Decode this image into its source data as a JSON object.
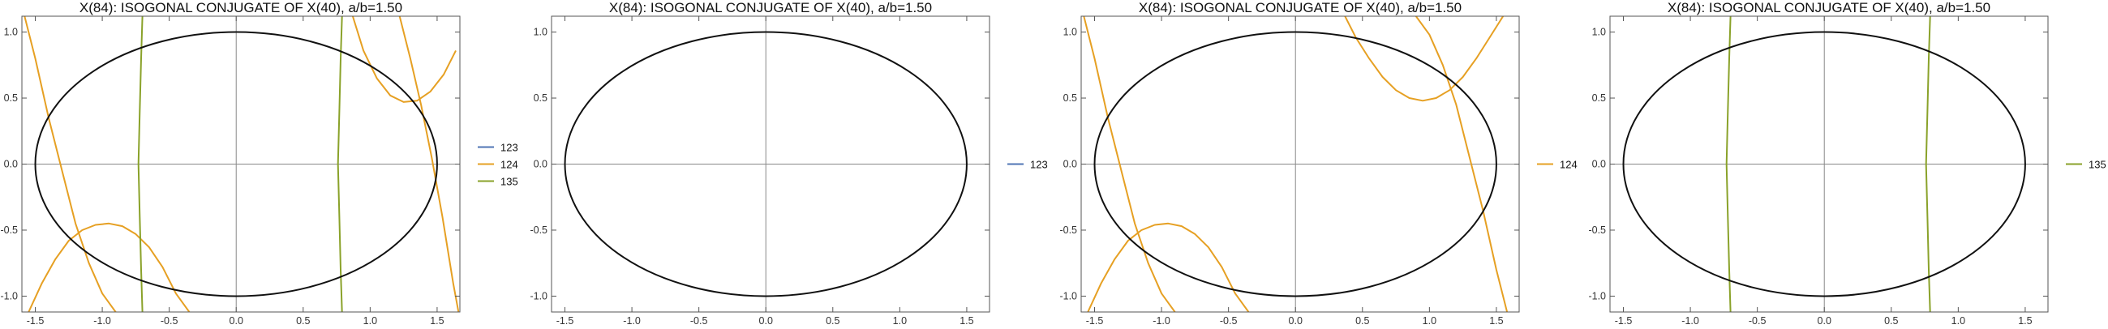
{
  "colors": {
    "123": "#4f74b4",
    "124": "#e6a023",
    "135": "#8aa22a",
    "ellipse": "#111111",
    "axes": "#888888",
    "frame": "#555555"
  },
  "chart_data": [
    {
      "type": "line",
      "title": "X(84): ISOGONAL CONJUGATE OF X(40), a/b=1.50",
      "xlim": [
        -1.6,
        1.67
      ],
      "ylim": [
        -1.12,
        1.12
      ],
      "xticks": [
        "-1.5",
        "-1.0",
        "-0.5",
        "0.0",
        "0.5",
        "1.0",
        "1.5"
      ],
      "yticks": [
        "-1.0",
        "-0.5",
        "0.0",
        "0.5",
        "1.0"
      ],
      "ellipse": {
        "a": 1.5,
        "b": 1.0
      },
      "legend": [
        "123",
        "124",
        "135"
      ],
      "series": [
        {
          "name": "124",
          "curves": [
            {
              "x": [
                0.87,
                0.95,
                1.05,
                1.15,
                1.25,
                1.35,
                1.45,
                1.55,
                1.64
              ],
              "y": [
                1.12,
                0.86,
                0.65,
                0.52,
                0.47,
                0.48,
                0.55,
                0.68,
                0.86
              ]
            },
            {
              "x": [
                1.22,
                1.3,
                1.38,
                1.46,
                1.54,
                1.62,
                1.66
              ],
              "y": [
                1.12,
                0.8,
                0.45,
                0.05,
                -0.4,
                -0.9,
                -1.12
              ]
            },
            {
              "x": [
                -1.55,
                -1.45,
                -1.35,
                -1.25,
                -1.15,
                -1.05,
                -0.95,
                -0.85,
                -0.75,
                -0.65,
                -0.55,
                -0.45,
                -0.35
              ],
              "y": [
                -1.12,
                -0.9,
                -0.72,
                -0.58,
                -0.5,
                -0.46,
                -0.45,
                -0.47,
                -0.53,
                -0.63,
                -0.78,
                -0.98,
                -1.12
              ]
            },
            {
              "x": [
                -1.58,
                -1.5,
                -1.4,
                -1.3,
                -1.2,
                -1.1,
                -1.0,
                -0.9
              ],
              "y": [
                1.12,
                0.8,
                0.35,
                -0.05,
                -0.45,
                -0.75,
                -0.98,
                -1.12
              ]
            }
          ]
        },
        {
          "name": "135",
          "curves": [
            {
              "x": [
                -0.7,
                -0.71,
                -0.72,
                -0.73,
                -0.72,
                -0.71,
                -0.7
              ],
              "y": [
                -1.12,
                -0.8,
                -0.4,
                0.0,
                0.4,
                0.8,
                1.12
              ]
            },
            {
              "x": [
                0.79,
                0.78,
                0.77,
                0.76,
                0.77,
                0.78,
                0.79
              ],
              "y": [
                -1.12,
                -0.8,
                -0.4,
                0.0,
                0.4,
                0.8,
                1.12
              ]
            }
          ]
        }
      ]
    },
    {
      "type": "line",
      "title": "X(84): ISOGONAL CONJUGATE OF X(40), a/b=1.50",
      "xlim": [
        -1.6,
        1.67
      ],
      "ylim": [
        -1.12,
        1.12
      ],
      "xticks": [
        "-1.5",
        "-1.0",
        "-0.5",
        "0.0",
        "0.5",
        "1.0",
        "1.5"
      ],
      "yticks": [
        "-1.0",
        "-0.5",
        "0.0",
        "0.5",
        "1.0"
      ],
      "ellipse": {
        "a": 1.5,
        "b": 1.0
      },
      "legend": [
        "123"
      ],
      "series": [
        {
          "name": "123",
          "curves": []
        }
      ]
    },
    {
      "type": "line",
      "title": "X(84): ISOGONAL CONJUGATE OF X(40), a/b=1.50",
      "xlim": [
        -1.6,
        1.67
      ],
      "ylim": [
        -1.12,
        1.12
      ],
      "xticks": [
        "-1.5",
        "-1.0",
        "-0.5",
        "0.0",
        "0.5",
        "1.0",
        "1.5"
      ],
      "yticks": [
        "-1.0",
        "-0.5",
        "0.0",
        "0.5",
        "1.0"
      ],
      "ellipse": {
        "a": 1.5,
        "b": 1.0
      },
      "legend": [
        "124"
      ],
      "series": [
        {
          "name": "124",
          "curves": [
            {
              "x": [
                0.37,
                0.45,
                0.55,
                0.65,
                0.75,
                0.85,
                0.95,
                1.05,
                1.15,
                1.25,
                1.35,
                1.45,
                1.55
              ],
              "y": [
                1.12,
                0.96,
                0.8,
                0.66,
                0.56,
                0.5,
                0.48,
                0.5,
                0.56,
                0.66,
                0.8,
                0.96,
                1.12
              ]
            },
            {
              "x": [
                0.9,
                1.0,
                1.1,
                1.2,
                1.3,
                1.4,
                1.5,
                1.58
              ],
              "y": [
                1.12,
                0.98,
                0.75,
                0.45,
                0.05,
                -0.35,
                -0.8,
                -1.12
              ]
            },
            {
              "x": [
                -1.55,
                -1.45,
                -1.35,
                -1.25,
                -1.15,
                -1.05,
                -0.95,
                -0.85,
                -0.75,
                -0.65,
                -0.55,
                -0.45,
                -0.35
              ],
              "y": [
                -1.12,
                -0.9,
                -0.72,
                -0.58,
                -0.5,
                -0.46,
                -0.45,
                -0.47,
                -0.53,
                -0.63,
                -0.78,
                -0.98,
                -1.12
              ]
            },
            {
              "x": [
                -1.58,
                -1.5,
                -1.4,
                -1.3,
                -1.2,
                -1.1,
                -1.0,
                -0.9
              ],
              "y": [
                1.12,
                0.8,
                0.35,
                -0.05,
                -0.45,
                -0.75,
                -0.98,
                -1.12
              ]
            }
          ]
        }
      ]
    },
    {
      "type": "line",
      "title": "X(84): ISOGONAL CONJUGATE OF X(40), a/b=1.50",
      "xlim": [
        -1.6,
        1.67
      ],
      "ylim": [
        -1.12,
        1.12
      ],
      "xticks": [
        "-1.5",
        "-1.0",
        "-0.5",
        "0.0",
        "0.5",
        "1.0",
        "1.5"
      ],
      "yticks": [
        "-1.0",
        "-0.5",
        "0.0",
        "0.5",
        "1.0"
      ],
      "ellipse": {
        "a": 1.5,
        "b": 1.0
      },
      "legend": [
        "135"
      ],
      "series": [
        {
          "name": "135",
          "curves": [
            {
              "x": [
                -0.7,
                -0.71,
                -0.72,
                -0.73,
                -0.72,
                -0.71,
                -0.7
              ],
              "y": [
                -1.12,
                -0.8,
                -0.4,
                0.0,
                0.4,
                0.8,
                1.12
              ]
            },
            {
              "x": [
                0.79,
                0.78,
                0.77,
                0.76,
                0.77,
                0.78,
                0.79
              ],
              "y": [
                -1.12,
                -0.8,
                -0.4,
                0.0,
                0.4,
                0.8,
                1.12
              ]
            }
          ]
        }
      ]
    }
  ]
}
